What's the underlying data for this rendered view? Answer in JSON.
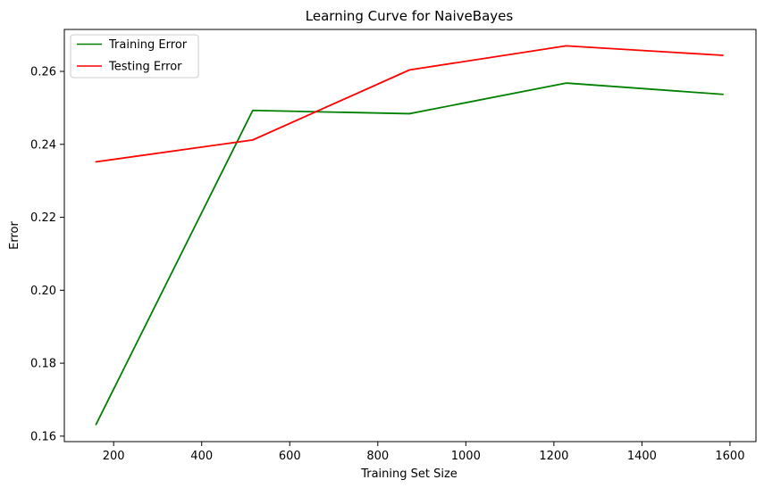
{
  "chart_data": {
    "type": "line",
    "title": "Learning Curve for NaiveBayes",
    "xlabel": "Training Set Size",
    "ylabel": "Error",
    "xlim": [
      88,
      1659
    ],
    "ylim": [
      0.1585,
      0.2715
    ],
    "xticks": [
      200,
      400,
      600,
      800,
      1000,
      1200,
      1400,
      1600
    ],
    "yticks": [
      0.16,
      0.18,
      0.2,
      0.22,
      0.24,
      0.26
    ],
    "ytick_labels": [
      "0.16",
      "0.18",
      "0.20",
      "0.22",
      "0.24",
      "0.26"
    ],
    "grid": false,
    "legend": {
      "placement": "top-left",
      "entries": [
        "Training Error",
        "Testing Error"
      ]
    },
    "x": [
      160,
      516,
      872,
      1228,
      1584
    ],
    "series": [
      {
        "name": "Training Error",
        "color": "#008000",
        "values": [
          0.1632,
          0.2493,
          0.2484,
          0.2568,
          0.2537
        ]
      },
      {
        "name": "Testing Error",
        "color": "#ff0000",
        "values": [
          0.2352,
          0.2412,
          0.2604,
          0.267,
          0.2644
        ]
      }
    ]
  }
}
